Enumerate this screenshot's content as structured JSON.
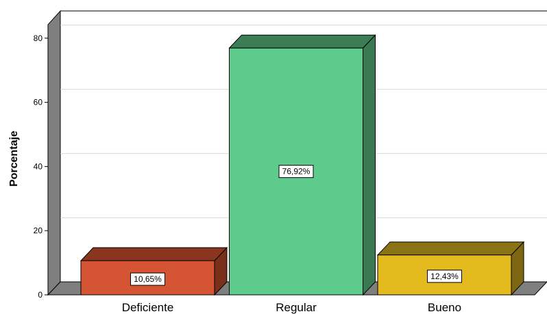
{
  "chart_data": {
    "type": "bar",
    "categories": [
      "Deficiente",
      "Regular",
      "Bueno"
    ],
    "values": [
      10.65,
      76.92,
      12.43
    ],
    "data_labels": [
      "10,65%",
      "76,92%",
      "12,43%"
    ],
    "ylabel": "Porcentaje",
    "xlabel": "",
    "ylim": [
      0,
      84
    ],
    "yticks": [
      "0",
      "20",
      "40",
      "60",
      "80"
    ],
    "ytick_values": [
      0,
      20,
      40,
      60,
      80
    ],
    "grid": true,
    "style": "3d",
    "colors": {
      "bars": [
        {
          "front": "#d45434",
          "top": "#8a351f",
          "side": "#7a2f1b"
        },
        {
          "front": "#5ecb8c",
          "top": "#3d7d55",
          "side": "#3a7a52"
        },
        {
          "front": "#e2ba1e",
          "top": "#8a7315",
          "side": "#7d6712"
        }
      ],
      "wall": "#7f7f7f",
      "floor": "#7f7f7f",
      "grid": "#d9d9d9"
    }
  }
}
